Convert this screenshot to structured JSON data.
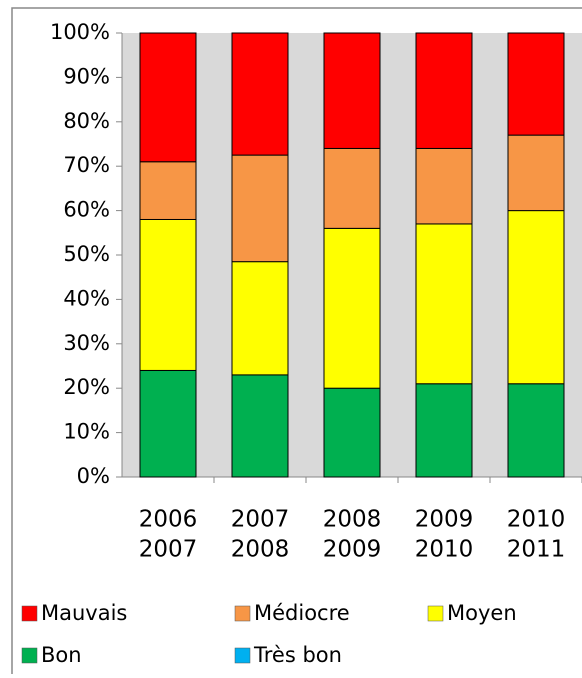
{
  "chart_data": {
    "type": "stacked_bar_100",
    "categories": [
      [
        "2006",
        "2007"
      ],
      [
        "2007",
        "2008"
      ],
      [
        "2008",
        "2009"
      ],
      [
        "2009",
        "2010"
      ],
      [
        "2010",
        "2011"
      ]
    ],
    "series": [
      {
        "name": "Mauvais",
        "color": "#ff0000",
        "values": [
          29,
          27.5,
          26,
          26,
          23
        ]
      },
      {
        "name": "Médiocre",
        "color": "#f79646",
        "values": [
          13,
          24,
          18,
          17,
          17
        ]
      },
      {
        "name": "Moyen",
        "color": "#ffff00",
        "values": [
          34,
          25.5,
          36,
          36,
          39
        ]
      },
      {
        "name": "Bon",
        "color": "#00b050",
        "values": [
          24,
          23,
          20,
          21,
          21
        ]
      },
      {
        "name": "Très bon",
        "color": "#00b0f0",
        "values": [
          0,
          0,
          0,
          0,
          0
        ]
      }
    ],
    "ylim": [
      0,
      100
    ],
    "yticks": [
      {
        "value": 0,
        "label": "0%"
      },
      {
        "value": 10,
        "label": "10%"
      },
      {
        "value": 20,
        "label": "20%"
      },
      {
        "value": 30,
        "label": "30%"
      },
      {
        "value": 40,
        "label": "40%"
      },
      {
        "value": 50,
        "label": "50%"
      },
      {
        "value": 60,
        "label": "60%"
      },
      {
        "value": 70,
        "label": "70%"
      },
      {
        "value": 80,
        "label": "80%"
      },
      {
        "value": 90,
        "label": "90%"
      },
      {
        "value": 100,
        "label": "100%"
      }
    ],
    "legend": "bottom"
  }
}
